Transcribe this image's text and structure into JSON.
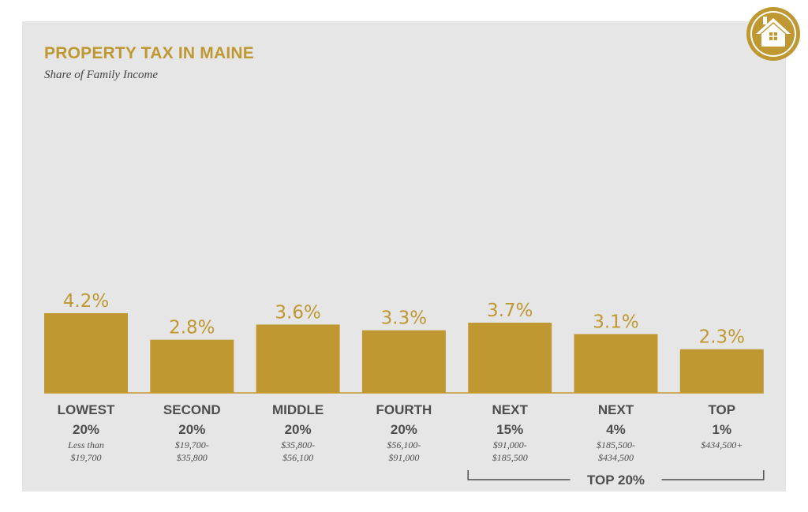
{
  "chart_data": {
    "type": "bar",
    "title": "PROPERTY TAX IN MAINE",
    "subtitle": "Share of Family Income",
    "unit": "%",
    "ylim": [
      0,
      4.2
    ],
    "grid": false,
    "categories": [
      {
        "name": [
          "LOWEST",
          "20%"
        ],
        "range": [
          "Less than",
          "$19,700"
        ]
      },
      {
        "name": [
          "SECOND",
          "20%"
        ],
        "range": [
          "$19,700-",
          "$35,800"
        ]
      },
      {
        "name": [
          "MIDDLE",
          "20%"
        ],
        "range": [
          "$35,800-",
          "$56,100"
        ]
      },
      {
        "name": [
          "FOURTH",
          "20%"
        ],
        "range": [
          "$56,100-",
          "$91,000"
        ]
      },
      {
        "name": [
          "NEXT",
          "15%"
        ],
        "range": [
          "$91,000-",
          "$185,500"
        ]
      },
      {
        "name": [
          "NEXT",
          "4%"
        ],
        "range": [
          "$185,500-",
          "$434,500"
        ]
      },
      {
        "name": [
          "TOP",
          "1%"
        ],
        "range": [
          "$434,500+"
        ]
      }
    ],
    "values": [
      4.2,
      2.8,
      3.6,
      3.3,
      3.7,
      3.1,
      2.3
    ],
    "value_labels": [
      "4.2%",
      "2.8%",
      "3.6%",
      "3.3%",
      "3.7%",
      "3.1%",
      "2.3%"
    ],
    "annotations": [
      {
        "label": "TOP 20%",
        "spans": [
          4,
          6
        ]
      }
    ]
  },
  "colors": {
    "bar": "#bf9832",
    "panel": "#e6e6e6",
    "text": "#4d4d4d",
    "accent": "#bf9832"
  },
  "icons": {
    "logo": "house-icon"
  }
}
